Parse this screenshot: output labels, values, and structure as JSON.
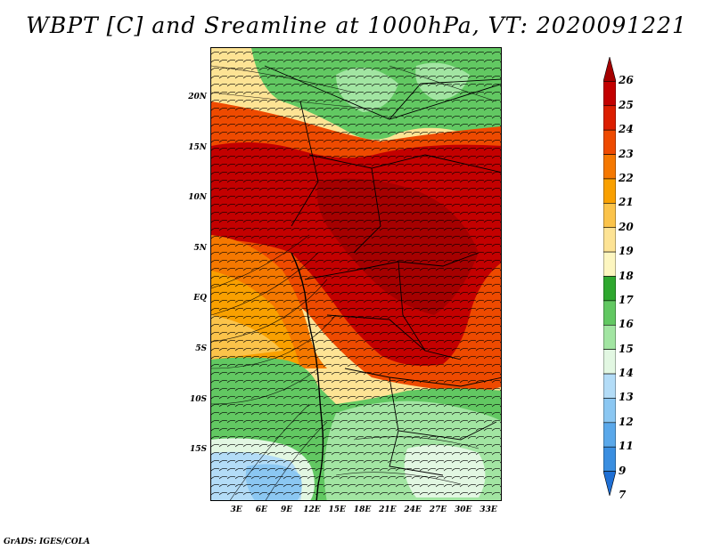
{
  "title": "WBPT [C] and Sreamline at 1000hPa, VT: 2020091221",
  "lat_labels": [
    "20N",
    "15N",
    "10N",
    "5N",
    "EQ",
    "5S",
    "10S",
    "15S"
  ],
  "lon_labels": [
    "3E",
    "6E",
    "9E",
    "12E",
    "15E",
    "18E",
    "21E",
    "24E",
    "27E",
    "30E",
    "33E"
  ],
  "colorbar": {
    "labels": [
      "26",
      "25",
      "24",
      "23",
      "22",
      "21",
      "20",
      "19",
      "18",
      "17",
      "16",
      "15",
      "14",
      "13",
      "12",
      "11",
      "9",
      "7"
    ],
    "colors": [
      "#a50000",
      "#c30000",
      "#dc1e00",
      "#ee4a00",
      "#f57800",
      "#f9a000",
      "#fbc34a",
      "#fde394",
      "#fdf6c0",
      "#2fa82f",
      "#62c862",
      "#a2e5a2",
      "#e2f7e2",
      "#b3dcf7",
      "#8bc7f2",
      "#5aa8ea",
      "#3a8ee0",
      "#1f6fd4"
    ]
  },
  "credit": "GrADS: IGES/COLA"
}
